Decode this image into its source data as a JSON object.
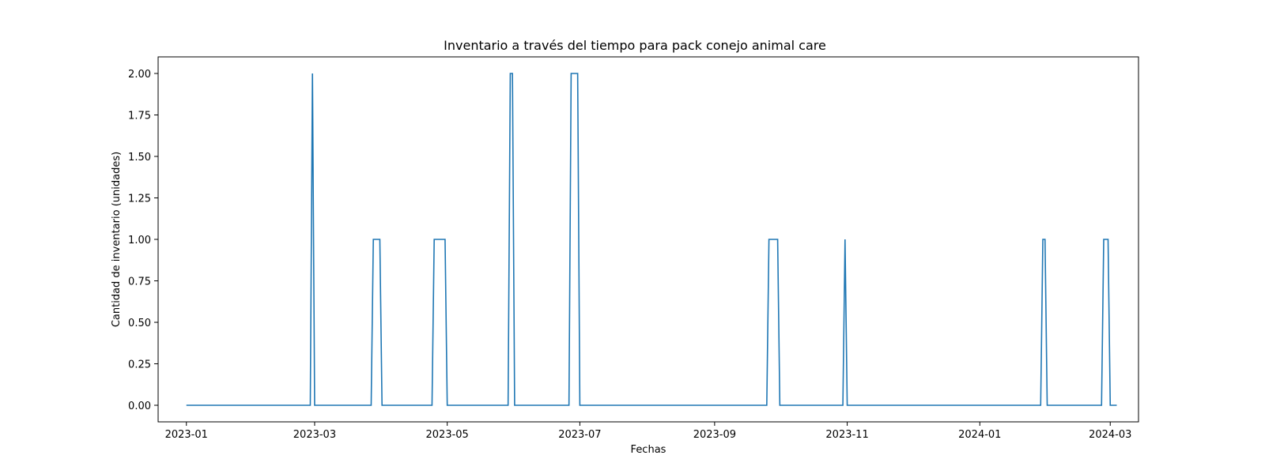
{
  "chart_data": {
    "type": "line",
    "title": "Inventario a través del tiempo para pack conejo animal care",
    "xlabel": "Fechas",
    "ylabel": "Cantidad de inventario (unidades)",
    "xlim": [
      "2022-12-19",
      "2024-03-14"
    ],
    "ylim": [
      -0.1,
      2.1
    ],
    "grid": false,
    "x_ticks": [
      "2023-01",
      "2023-03",
      "2023-05",
      "2023-07",
      "2023-09",
      "2023-11",
      "2024-01",
      "2024-03"
    ],
    "y_ticks": [
      "0.00",
      "0.25",
      "0.50",
      "0.75",
      "1.00",
      "1.25",
      "1.50",
      "1.75",
      "2.00"
    ],
    "series": [
      {
        "color": "#1f77b4",
        "points": [
          {
            "x": "2023-01-01",
            "y": 0
          },
          {
            "x": "2023-02-27",
            "y": 0
          },
          {
            "x": "2023-02-28",
            "y": 2
          },
          {
            "x": "2023-03-01",
            "y": 0
          },
          {
            "x": "2023-03-27",
            "y": 0
          },
          {
            "x": "2023-03-28",
            "y": 1
          },
          {
            "x": "2023-03-31",
            "y": 1
          },
          {
            "x": "2023-04-01",
            "y": 0
          },
          {
            "x": "2023-04-24",
            "y": 0
          },
          {
            "x": "2023-04-25",
            "y": 1
          },
          {
            "x": "2023-04-30",
            "y": 1
          },
          {
            "x": "2023-05-01",
            "y": 0
          },
          {
            "x": "2023-05-29",
            "y": 0
          },
          {
            "x": "2023-05-30",
            "y": 2
          },
          {
            "x": "2023-05-31",
            "y": 2
          },
          {
            "x": "2023-06-01",
            "y": 0
          },
          {
            "x": "2023-06-26",
            "y": 0
          },
          {
            "x": "2023-06-27",
            "y": 2
          },
          {
            "x": "2023-06-30",
            "y": 2
          },
          {
            "x": "2023-07-01",
            "y": 0
          },
          {
            "x": "2023-09-25",
            "y": 0
          },
          {
            "x": "2023-09-26",
            "y": 1
          },
          {
            "x": "2023-09-30",
            "y": 1
          },
          {
            "x": "2023-10-01",
            "y": 0
          },
          {
            "x": "2023-10-30",
            "y": 0
          },
          {
            "x": "2023-10-31",
            "y": 1
          },
          {
            "x": "2023-11-01",
            "y": 0
          },
          {
            "x": "2024-01-29",
            "y": 0
          },
          {
            "x": "2024-01-30",
            "y": 1
          },
          {
            "x": "2024-01-31",
            "y": 1
          },
          {
            "x": "2024-02-01",
            "y": 0
          },
          {
            "x": "2024-02-26",
            "y": 0
          },
          {
            "x": "2024-02-27",
            "y": 1
          },
          {
            "x": "2024-02-29",
            "y": 1
          },
          {
            "x": "2024-03-01",
            "y": 0
          },
          {
            "x": "2024-03-04",
            "y": 0
          }
        ]
      }
    ]
  }
}
